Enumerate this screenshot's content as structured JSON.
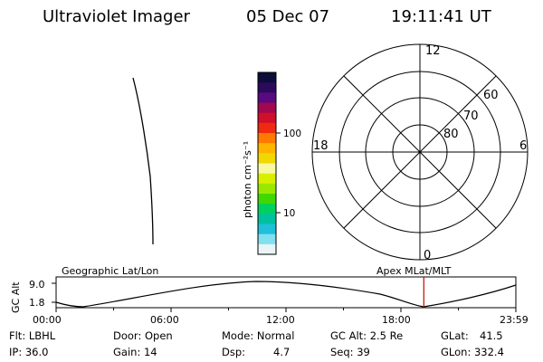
{
  "header": {
    "instrument": "Ultraviolet Imager",
    "date": "05 Dec 07",
    "time": "19:11:41 UT"
  },
  "colorbar": {
    "label": "photon cm⁻²s⁻¹",
    "tick_labels": [
      "100",
      "10"
    ],
    "scale": "log",
    "colors": [
      "#0d0d3a",
      "#2a0a5a",
      "#5a0a80",
      "#a00850",
      "#d0102a",
      "#f02a10",
      "#ff7a00",
      "#ffb400",
      "#f0d800",
      "#f8f8a0",
      "#d8f000",
      "#9ae800",
      "#40d800",
      "#00d060",
      "#00c0a0",
      "#20c0d8",
      "#80e0f0",
      "#e8f4f6"
    ]
  },
  "polar": {
    "mlt_labels": [
      "12",
      "18",
      "6",
      "0"
    ],
    "mlat_labels": [
      "60",
      "70",
      "80"
    ]
  },
  "timeline": {
    "ylabel": "GC Alt",
    "y_ticks": [
      "9.0",
      "1.8"
    ],
    "left_label": "Geographic Lat/Lon",
    "right_label": "Apex MLat/MLT",
    "x_ticks": [
      "00:00",
      "06:00",
      "12:00",
      "18:00",
      "23:59"
    ],
    "marker_time": "19:11:41",
    "marker_color": "#cc0000"
  },
  "footer": {
    "filter": "Flt: LBHL",
    "ip": "IP: 36.0",
    "door": "Door: Open",
    "gain": "Gain: 14",
    "mode": "Mode: Normal",
    "dsp": "Dsp:",
    "dsp_value": "4.7",
    "gc_alt": "GC Alt: 2.5 Re",
    "seq": "Seq: 39",
    "glat": "GLat:",
    "glat_value": "41.5",
    "glon": "GLon: 332.4"
  }
}
